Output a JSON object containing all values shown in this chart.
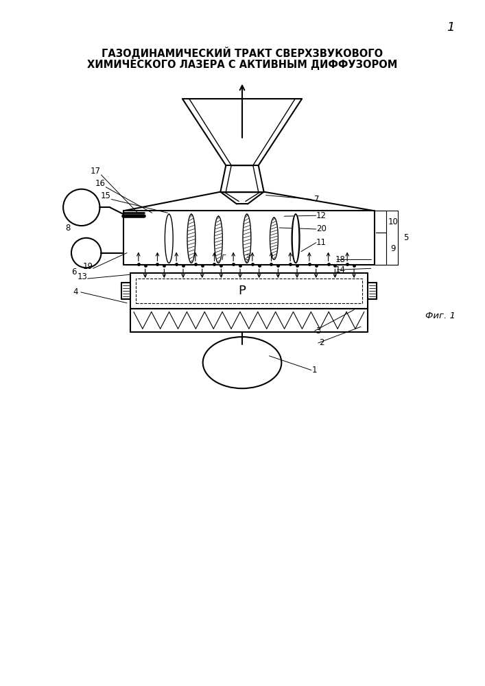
{
  "title_line1": "ГАЗОДИНАМИЧЕСКИЙ ТРАКТ СВЕРХЗВУКОВОГО",
  "title_line2": "ХИМИЧЕСКОГО ЛАЗЕРА С АКТИВНЫМ ДИФФУЗОРОМ",
  "fig_label": "Фиг. 1",
  "page_number": "1",
  "bg_color": "#ffffff",
  "line_color": "#000000",
  "label_fontsize": 8.5,
  "title_fontsize": 10.5
}
